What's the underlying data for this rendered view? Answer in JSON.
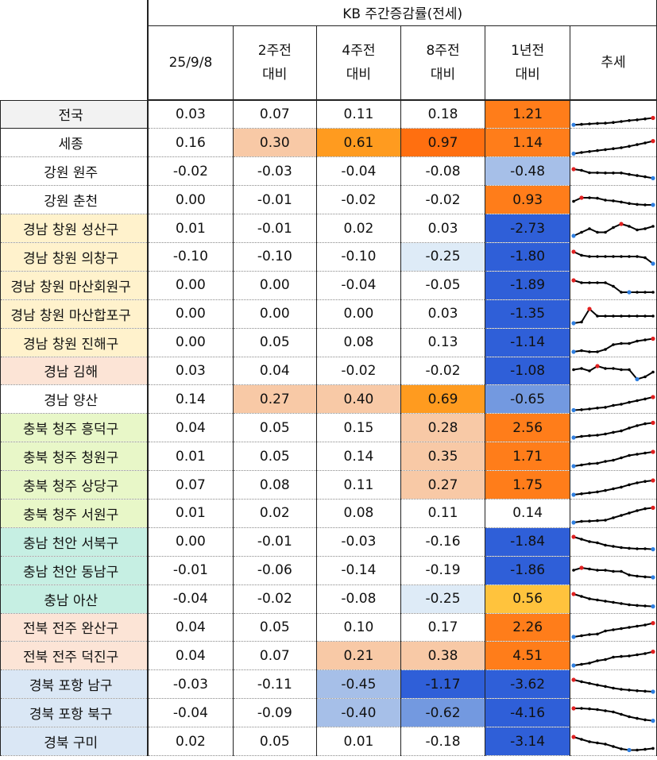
{
  "title": "KB 주간증감률(전세)",
  "headers": [
    {
      "l1": "25/9/8",
      "l2": ""
    },
    {
      "l1": "2주전",
      "l2": "대비"
    },
    {
      "l1": "4주전",
      "l2": "대비"
    },
    {
      "l1": "8주전",
      "l2": "대비"
    },
    {
      "l1": "1년전",
      "l2": "대비"
    },
    {
      "l1": "추세",
      "l2": ""
    }
  ],
  "rows": [
    {
      "name": "전국",
      "labelBg": "#f2f2f2",
      "vals": [
        "0.03",
        "0.07",
        "0.11",
        "0.18",
        "1.21"
      ],
      "bg": [
        "",
        "",
        "",
        "",
        "#ff7d1a"
      ],
      "spark": [
        0.06,
        0.08,
        0.1,
        0.12,
        0.13,
        0.16,
        0.2,
        0.24,
        0.27,
        0.31,
        0.35
      ],
      "red": 10,
      "blue": 0
    },
    {
      "name": "세종",
      "labelBg": "#ffffff",
      "vals": [
        "0.16",
        "0.30",
        "0.61",
        "0.97",
        "1.14"
      ],
      "bg": [
        "",
        "#f8c9a6",
        "#ff9b1f",
        "#ff6f10",
        "#ff7d1a"
      ],
      "spark": [
        0.05,
        0.1,
        0.14,
        0.18,
        0.22,
        0.26,
        0.3,
        0.36,
        0.43,
        0.5,
        0.58
      ],
      "red": 10,
      "blue": 0
    },
    {
      "name": "강원 원주",
      "labelBg": "#ffffff",
      "vals": [
        "-0.02",
        "-0.03",
        "-0.04",
        "-0.08",
        "-0.48"
      ],
      "bg": [
        "",
        "",
        "",
        "",
        "#a6bfe8"
      ],
      "spark": [
        0.6,
        0.55,
        0.45,
        0.45,
        0.44,
        0.44,
        0.44,
        0.38,
        0.33,
        0.28,
        0.22
      ],
      "red": 0,
      "blue": 10
    },
    {
      "name": "강원 춘천",
      "labelBg": "#ffffff",
      "vals": [
        "0.00",
        "-0.01",
        "-0.02",
        "-0.02",
        "0.93"
      ],
      "bg": [
        "",
        "",
        "",
        "",
        "#ff7d1a"
      ],
      "spark": [
        0.45,
        0.6,
        0.6,
        0.58,
        0.5,
        0.47,
        0.42,
        0.36,
        0.32,
        0.3,
        0.3
      ],
      "red": 1,
      "blue": 10
    },
    {
      "name": "경남 창원 성산구",
      "labelBg": "#fff2cc",
      "vals": [
        "0.01",
        "-0.01",
        "0.02",
        "0.03",
        "-2.73"
      ],
      "bg": [
        "",
        "",
        "",
        "",
        "#2f5fd8"
      ],
      "spark": [
        0.2,
        0.35,
        0.5,
        0.35,
        0.35,
        0.55,
        0.7,
        0.6,
        0.45,
        0.5,
        0.6
      ],
      "red": 6,
      "blue": 0
    },
    {
      "name": "경남 창원 의창구",
      "labelBg": "#fff2cc",
      "vals": [
        "-0.10",
        "-0.10",
        "-0.10",
        "-0.25",
        "-1.80"
      ],
      "bg": [
        "",
        "",
        "",
        "#deebf7",
        "#2f5fd8"
      ],
      "spark": [
        0.7,
        0.55,
        0.5,
        0.5,
        0.5,
        0.5,
        0.5,
        0.5,
        0.5,
        0.45,
        0.2
      ],
      "red": 0,
      "blue": 10
    },
    {
      "name": "경남 창원 마산회원구",
      "labelBg": "#fff2cc",
      "vals": [
        "0.00",
        "0.00",
        "-0.04",
        "-0.05",
        "-1.89"
      ],
      "bg": [
        "",
        "",
        "",
        "",
        "#2f5fd8"
      ],
      "spark": [
        0.7,
        0.6,
        0.6,
        0.6,
        0.6,
        0.45,
        0.2,
        0.2,
        0.2,
        0.2,
        0.2
      ],
      "red": 0,
      "blue": 7
    },
    {
      "name": "경남 창원 마산합포구",
      "labelBg": "#fff2cc",
      "vals": [
        "0.00",
        "0.00",
        "0.00",
        "0.03",
        "-1.35"
      ],
      "bg": [
        "",
        "",
        "",
        "",
        "#2f5fd8"
      ],
      "spark": [
        0.1,
        0.15,
        0.7,
        0.4,
        0.4,
        0.4,
        0.4,
        0.4,
        0.4,
        0.4,
        0.4
      ],
      "red": 2,
      "blue": 0
    },
    {
      "name": "경남 창원 진해구",
      "labelBg": "#fff2cc",
      "vals": [
        "0.00",
        "0.05",
        "0.08",
        "0.13",
        "-1.14"
      ],
      "bg": [
        "",
        "",
        "",
        "",
        "#2f5fd8"
      ],
      "spark": [
        0.1,
        0.15,
        0.1,
        0.1,
        0.2,
        0.4,
        0.45,
        0.45,
        0.55,
        0.6,
        0.65
      ],
      "red": 10,
      "blue": 0
    },
    {
      "name": "경남 김해",
      "labelBg": "#fce4d6",
      "vals": [
        "0.03",
        "0.04",
        "-0.02",
        "-0.02",
        "-1.08"
      ],
      "bg": [
        "",
        "",
        "",
        "",
        "#2f5fd8"
      ],
      "spark": [
        0.55,
        0.6,
        0.5,
        0.7,
        0.6,
        0.6,
        0.55,
        0.55,
        0.15,
        0.25,
        0.45
      ],
      "red": 3,
      "blue": 8
    },
    {
      "name": "경남 양산",
      "labelBg": "#ffffff",
      "vals": [
        "0.14",
        "0.27",
        "0.40",
        "0.69",
        "-0.65"
      ],
      "bg": [
        "",
        "#f8c9a6",
        "#f8c9a6",
        "#ff9b1f",
        "#7399e0"
      ],
      "spark": [
        0.05,
        0.07,
        0.1,
        0.14,
        0.17,
        0.25,
        0.3,
        0.38,
        0.45,
        0.52,
        0.6
      ],
      "red": 10,
      "blue": 0
    },
    {
      "name": "충북 청주 흥덕구",
      "labelBg": "#e8f7c8",
      "vals": [
        "0.04",
        "0.05",
        "0.15",
        "0.28",
        "2.56"
      ],
      "bg": [
        "",
        "",
        "",
        "#f8c9a6",
        "#ff7d1a"
      ],
      "spark": [
        0.1,
        0.15,
        0.18,
        0.2,
        0.25,
        0.32,
        0.38,
        0.5,
        0.6,
        0.68,
        0.72
      ],
      "red": 10,
      "blue": 0
    },
    {
      "name": "충북 청주 청원구",
      "labelBg": "#e8f7c8",
      "vals": [
        "0.01",
        "0.05",
        "0.14",
        "0.35",
        "1.71"
      ],
      "bg": [
        "",
        "",
        "",
        "#f8c9a6",
        "#ff7d1a"
      ],
      "spark": [
        0.1,
        0.15,
        0.2,
        0.22,
        0.3,
        0.35,
        0.45,
        0.55,
        0.6,
        0.65,
        0.7
      ],
      "red": 10,
      "blue": 0
    },
    {
      "name": "충북 청주 상당구",
      "labelBg": "#e8f7c8",
      "vals": [
        "0.07",
        "0.08",
        "0.11",
        "0.27",
        "1.75"
      ],
      "bg": [
        "",
        "",
        "",
        "#f8c9a6",
        "#ff7d1a"
      ],
      "spark": [
        0.1,
        0.14,
        0.18,
        0.22,
        0.28,
        0.35,
        0.42,
        0.52,
        0.6,
        0.66,
        0.7
      ],
      "red": 10,
      "blue": 0
    },
    {
      "name": "충북 청주 서원구",
      "labelBg": "#e8f7c8",
      "vals": [
        "0.01",
        "0.02",
        "0.08",
        "0.11",
        "0.14"
      ],
      "bg": [
        "",
        "",
        "",
        "",
        ""
      ],
      "spark": [
        0.1,
        0.15,
        0.16,
        0.18,
        0.2,
        0.3,
        0.4,
        0.5,
        0.6,
        0.68,
        0.72
      ],
      "red": 10,
      "blue": 0
    },
    {
      "name": "충남 천안 서북구",
      "labelBg": "#c6efe3",
      "vals": [
        "0.00",
        "-0.01",
        "-0.03",
        "-0.16",
        "-1.84"
      ],
      "bg": [
        "",
        "",
        "",
        "",
        "#2f5fd8"
      ],
      "spark": [
        0.7,
        0.6,
        0.5,
        0.45,
        0.35,
        0.3,
        0.25,
        0.22,
        0.2,
        0.2,
        0.18
      ],
      "red": 0,
      "blue": 10
    },
    {
      "name": "충남 천안 동남구",
      "labelBg": "#c6efe3",
      "vals": [
        "-0.01",
        "-0.06",
        "-0.14",
        "-0.19",
        "-1.86"
      ],
      "bg": [
        "",
        "",
        "",
        "",
        "#2f5fd8"
      ],
      "spark": [
        0.5,
        0.6,
        0.55,
        0.5,
        0.5,
        0.45,
        0.45,
        0.3,
        0.25,
        0.22,
        0.2
      ],
      "red": 1,
      "blue": 10
    },
    {
      "name": "충남 아산",
      "labelBg": "#c6efe3",
      "vals": [
        "-0.04",
        "-0.02",
        "-0.08",
        "-0.25",
        "0.56"
      ],
      "bg": [
        "",
        "",
        "",
        "#deebf7",
        "#ffc33d"
      ],
      "spark": [
        0.7,
        0.6,
        0.5,
        0.45,
        0.4,
        0.35,
        0.3,
        0.25,
        0.22,
        0.2,
        0.18
      ],
      "red": 0,
      "blue": 10
    },
    {
      "name": "전북 전주 완산구",
      "labelBg": "#fce4d6",
      "vals": [
        "0.04",
        "0.05",
        "0.10",
        "0.17",
        "2.26"
      ],
      "bg": [
        "",
        "",
        "",
        "",
        "#ff7d1a"
      ],
      "spark": [
        0.1,
        0.15,
        0.2,
        0.22,
        0.35,
        0.4,
        0.45,
        0.5,
        0.55,
        0.6,
        0.68
      ],
      "red": 10,
      "blue": 0
    },
    {
      "name": "전북 전주 덕진구",
      "labelBg": "#fce4d6",
      "vals": [
        "0.04",
        "0.07",
        "0.21",
        "0.38",
        "4.51"
      ],
      "bg": [
        "",
        "",
        "#f8c9a6",
        "#f8c9a6",
        "#ff7d1a"
      ],
      "spark": [
        0.1,
        0.15,
        0.2,
        0.3,
        0.35,
        0.45,
        0.48,
        0.5,
        0.55,
        0.6,
        0.68
      ],
      "red": 10,
      "blue": 0
    },
    {
      "name": "경북 포항 남구",
      "labelBg": "#dae7f5",
      "vals": [
        "-0.03",
        "-0.11",
        "-0.45",
        "-1.17",
        "-3.62"
      ],
      "bg": [
        "",
        "",
        "#a6bfe8",
        "#2f5fd8",
        "#2f5fd8"
      ],
      "spark": [
        0.7,
        0.62,
        0.55,
        0.48,
        0.42,
        0.35,
        0.3,
        0.27,
        0.24,
        0.22,
        0.2
      ],
      "red": 0,
      "blue": 10
    },
    {
      "name": "경북 포항 북구",
      "labelBg": "#dae7f5",
      "vals": [
        "-0.04",
        "-0.09",
        "-0.40",
        "-0.62",
        "-4.16"
      ],
      "bg": [
        "",
        "",
        "#a6bfe8",
        "#7399e0",
        "#2f5fd8"
      ],
      "spark": [
        0.7,
        0.7,
        0.68,
        0.65,
        0.6,
        0.55,
        0.45,
        0.35,
        0.28,
        0.22,
        0.18
      ],
      "red": 0,
      "blue": 10
    },
    {
      "name": "경북 구미",
      "labelBg": "#dae7f5",
      "vals": [
        "0.02",
        "0.05",
        "0.01",
        "-0.18",
        "-3.14"
      ],
      "bg": [
        "",
        "",
        "",
        "",
        "#2f5fd8"
      ],
      "spark": [
        0.7,
        0.6,
        0.5,
        0.45,
        0.4,
        0.3,
        0.2,
        0.15,
        0.15,
        0.18,
        0.22
      ],
      "red": 0,
      "blue": 7
    }
  ]
}
